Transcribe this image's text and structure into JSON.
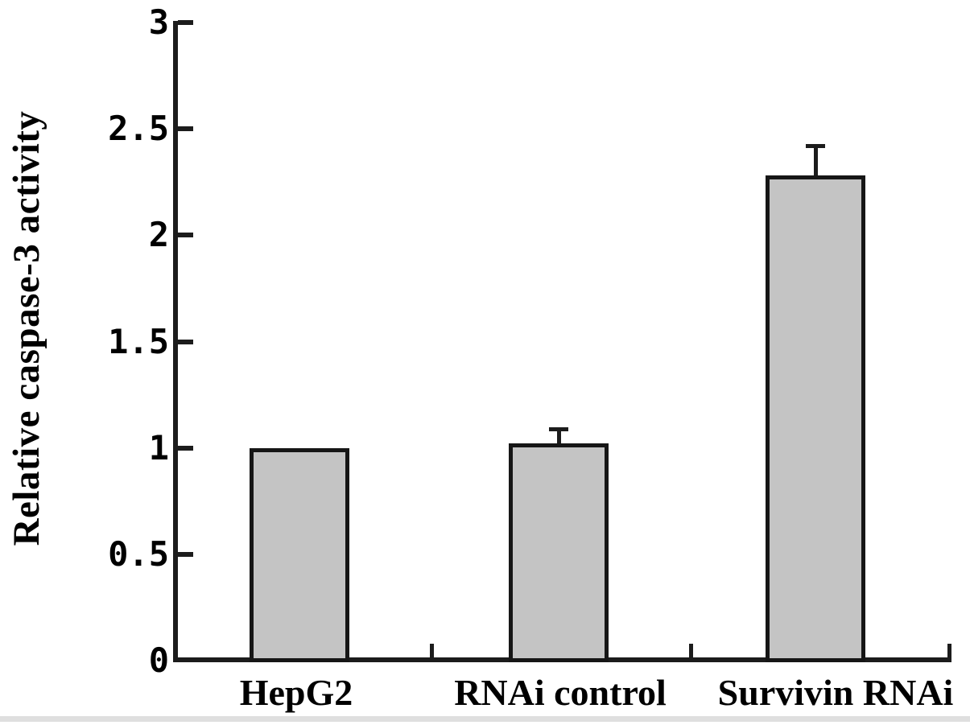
{
  "figure": {
    "background": "#ffffff"
  },
  "chart_data": {
    "type": "bar",
    "title": "",
    "ylabel": "Relative caspase-3 activity",
    "xlabel": "",
    "categories": [
      "HepG2",
      "RNAi control",
      "Survivin RNAi"
    ],
    "values": [
      1.0,
      1.02,
      2.28
    ],
    "errors_upper": [
      0,
      0.07,
      0.14
    ],
    "ylim": [
      0,
      3
    ],
    "yticks": [
      0,
      0.5,
      1,
      1.5,
      2,
      2.5,
      3
    ],
    "ytick_labels": [
      "0",
      "0.5",
      "1",
      "1.5",
      "2",
      "2.5",
      "3"
    ],
    "grid": false,
    "legend": "none",
    "bar_fill": "#c4c4c4",
    "bar_edge": "#161616",
    "axis_color": "#1c1c1c",
    "text_color": "#000000"
  }
}
